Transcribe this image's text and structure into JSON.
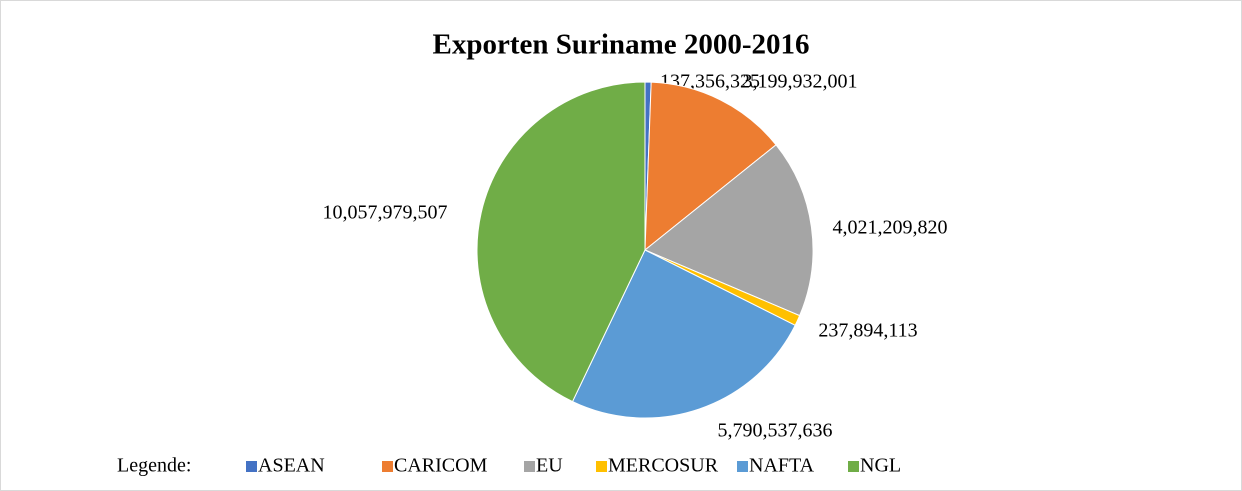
{
  "chart_data": {
    "type": "pie",
    "title": "Exporten Suriname 2000-2016",
    "categories": [
      "ASEAN",
      "CARICOM",
      "EU",
      "MERCOSUR",
      "NAFTA",
      "NGL"
    ],
    "values": [
      137356325,
      3199932001,
      4021209820,
      237894113,
      5790537636,
      10057979507
    ],
    "value_labels": [
      "137,356,325",
      "3,199,932,001",
      "4,021,209,820",
      "237,894,113",
      "5,790,537,636",
      "10,057,979,507"
    ],
    "colors": [
      "#4472c4",
      "#ed7d31",
      "#a5a5a5",
      "#ffc000",
      "#5b9bd5",
      "#70ad47"
    ],
    "legend_title": "Legende:",
    "legend": "bottom"
  }
}
